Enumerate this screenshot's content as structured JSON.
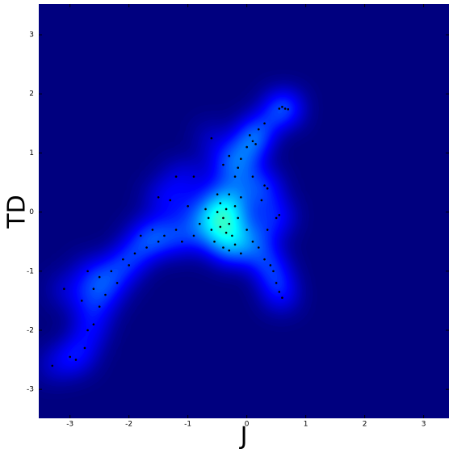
{
  "chart_data": {
    "type": "scatter-density",
    "xlabel": "J",
    "ylabel": "TD",
    "xlim": [
      -3.53,
      3.43
    ],
    "ylim": [
      -3.49,
      3.52
    ],
    "xticks": [
      -3,
      -2,
      -1,
      0,
      1,
      2,
      3
    ],
    "yticks": [
      -3,
      -2,
      -1,
      0,
      1,
      2,
      3
    ],
    "background": "#00007f",
    "point_color": "#000000",
    "x": [
      -0.4,
      -0.5,
      -0.3,
      -0.6,
      -0.2,
      -0.45,
      -0.35,
      -0.55,
      -0.25,
      -0.7,
      -0.15,
      -0.5,
      -0.3,
      -0.8,
      -0.1,
      -0.4,
      -0.65,
      -0.2,
      -0.45,
      -0.35,
      -0.2,
      -0.1,
      -0.3,
      0,
      0.1,
      0.05,
      0.15,
      -0.15,
      0.2,
      0.3,
      0.55,
      0.65,
      0.6,
      0.7,
      -0.4,
      -0.6,
      0.3,
      0.35,
      0.1,
      -0.9,
      -1.0,
      -1.2,
      -1.4,
      -1.3,
      -1.5,
      -1.6,
      -1.7,
      -1.9,
      -2.0,
      -2.1,
      -2.3,
      -2.5,
      -2.6,
      -2.7,
      -2.4,
      -2.8,
      -2.6,
      -2.7,
      -2.75,
      -2.9,
      -3.0,
      -3.3,
      -1.1,
      -0.9,
      -1.5,
      -1.2,
      -1.8,
      -2.2,
      -2.5,
      -3.1,
      0.1,
      0.2,
      0.3,
      0.4,
      0.45,
      0.5,
      0.55,
      0.6,
      0.35,
      0.5,
      0.55,
      0.25,
      0.0,
      -0.1,
      -0.3
    ],
    "y": [
      -0.1,
      0,
      -0.2,
      -0.3,
      0.1,
      0.15,
      -0.35,
      -0.5,
      -0.4,
      0.05,
      -0.1,
      0.3,
      0.3,
      -0.2,
      0.25,
      -0.6,
      -0.1,
      -0.55,
      -0.25,
      0.05,
      0.6,
      0.9,
      0.95,
      1.1,
      1.2,
      1.3,
      1.15,
      0.75,
      1.4,
      1.5,
      1.75,
      1.75,
      1.78,
      1.74,
      0.8,
      1.25,
      0.45,
      0.4,
      0.6,
      -0.4,
      0.1,
      -0.3,
      -0.4,
      0.2,
      -0.5,
      -0.3,
      -0.6,
      -0.7,
      -0.9,
      -0.8,
      -1.0,
      -1.1,
      -1.3,
      -1.0,
      -1.4,
      -1.5,
      -1.9,
      -2.0,
      -2.3,
      -2.5,
      -2.45,
      -2.6,
      -0.5,
      0.6,
      0.25,
      0.6,
      -0.4,
      -1.2,
      -1.6,
      -1.3,
      -0.5,
      -0.6,
      -0.8,
      -0.9,
      -1.0,
      -1.2,
      -1.35,
      -1.45,
      -0.3,
      -0.1,
      -0.05,
      0.2,
      -0.3,
      -0.7,
      -0.65
    ]
  }
}
